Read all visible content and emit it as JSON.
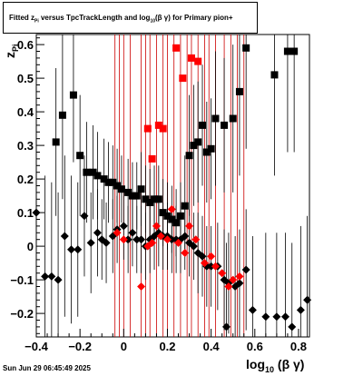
{
  "title": {
    "pre": "Fitted  z",
    "sub1": "Pi",
    "mid": "   versus TpcTrackLength and log",
    "sub2": "10",
    "post": "(β  γ) for Primary pion+"
  },
  "timestamp": "Sun Jun 29 06:45:49 2025",
  "x_axis_label": {
    "main": "log",
    "sub": "10",
    "rest": "(β γ)"
  },
  "y_axis_label": {
    "main": "z",
    "sub": "Pi"
  },
  "chart_data": {
    "type": "scatter",
    "xlim": [
      -0.4,
      0.85
    ],
    "ylim": [
      -0.27,
      0.63
    ],
    "x_ticks": [
      -0.4,
      -0.2,
      0,
      0.2,
      0.4,
      0.6,
      0.8
    ],
    "x_tick_labels": [
      "−0.4",
      "−0.2",
      "0",
      "0.2",
      "0.4",
      "0.6",
      "0.8"
    ],
    "y_ticks": [
      -0.2,
      -0.1,
      0,
      0.1,
      0.2,
      0.3,
      0.4,
      0.5,
      0.6
    ],
    "y_tick_labels": [
      "−0.2",
      "−0.1",
      "0",
      "0.1",
      "0.2",
      "0.3",
      "0.4",
      "0.5",
      "0.6"
    ],
    "grid": false,
    "red_vertical_lines_x": [
      -0.04,
      -0.02,
      0.0,
      0.03,
      0.08,
      0.1,
      0.12,
      0.15,
      0.18,
      0.2,
      0.23,
      0.26,
      0.29,
      0.31,
      0.34,
      0.37,
      0.39,
      0.42,
      0.46,
      0.49,
      0.52,
      0.55
    ],
    "series": [
      {
        "marker": "square",
        "color": "#000000",
        "points": [
          {
            "x": -0.31,
            "y": 0.31,
            "err": 0.22
          },
          {
            "x": -0.28,
            "y": 0.39,
            "err": 0.25
          },
          {
            "x": -0.23,
            "y": 0.45,
            "err": 0.2
          },
          {
            "x": -0.2,
            "y": 0.27,
            "err": 0.18
          },
          {
            "x": -0.17,
            "y": 0.22,
            "err": 0.15
          },
          {
            "x": -0.14,
            "y": 0.22,
            "err": 0.14
          },
          {
            "x": -0.12,
            "y": 0.21,
            "err": 0.13
          },
          {
            "x": -0.09,
            "y": 0.2,
            "err": 0.12
          },
          {
            "x": -0.07,
            "y": 0.19,
            "err": 0.12
          },
          {
            "x": -0.05,
            "y": 0.19,
            "err": 0.11
          },
          {
            "x": -0.03,
            "y": 0.18,
            "err": 0.11
          },
          {
            "x": -0.01,
            "y": 0.17,
            "err": 0.1
          },
          {
            "x": 0.02,
            "y": 0.16,
            "err": 0.1
          },
          {
            "x": 0.04,
            "y": 0.15,
            "err": 0.1
          },
          {
            "x": 0.06,
            "y": 0.15,
            "err": 0.1
          },
          {
            "x": 0.08,
            "y": 0.17,
            "err": 0.11
          },
          {
            "x": 0.1,
            "y": 0.14,
            "err": 0.1
          },
          {
            "x": 0.12,
            "y": 0.13,
            "err": 0.1
          },
          {
            "x": 0.14,
            "y": 0.14,
            "err": 0.1
          },
          {
            "x": 0.16,
            "y": 0.14,
            "err": 0.1
          },
          {
            "x": 0.18,
            "y": 0.1,
            "err": 0.1
          },
          {
            "x": 0.2,
            "y": 0.09,
            "err": 0.1
          },
          {
            "x": 0.22,
            "y": 0.08,
            "err": 0.1
          },
          {
            "x": 0.24,
            "y": 0.07,
            "err": 0.1
          },
          {
            "x": 0.26,
            "y": 0.09,
            "err": 0.1
          },
          {
            "x": 0.28,
            "y": 0.12,
            "err": 0.15
          },
          {
            "x": 0.3,
            "y": 0.27,
            "err": 0.18
          },
          {
            "x": 0.32,
            "y": 0.3,
            "err": 0.18
          },
          {
            "x": 0.34,
            "y": 0.31,
            "err": 0.18
          },
          {
            "x": 0.36,
            "y": 0.36,
            "err": 0.18
          },
          {
            "x": 0.38,
            "y": 0.28,
            "err": 0.15
          },
          {
            "x": 0.4,
            "y": 0.29,
            "err": 0.15
          },
          {
            "x": 0.42,
            "y": 0.38,
            "err": 0.2
          },
          {
            "x": 0.46,
            "y": 0.36,
            "err": 0.2
          },
          {
            "x": 0.5,
            "y": 0.38,
            "err": 0.22
          },
          {
            "x": 0.53,
            "y": 0.46,
            "err": 0.25
          },
          {
            "x": 0.56,
            "y": 0.59,
            "err": 0.3
          },
          {
            "x": 0.69,
            "y": 0.51,
            "err": 0.3
          },
          {
            "x": 0.75,
            "y": 0.58,
            "err": 0.3
          },
          {
            "x": 0.78,
            "y": 0.58,
            "err": 0.3
          }
        ]
      },
      {
        "marker": "square",
        "color": "#ff0000",
        "points": [
          {
            "x": 0.11,
            "y": 0.35
          },
          {
            "x": 0.13,
            "y": 0.26
          },
          {
            "x": 0.16,
            "y": 0.36
          },
          {
            "x": 0.18,
            "y": 0.35
          },
          {
            "x": 0.24,
            "y": 0.59
          },
          {
            "x": 0.27,
            "y": 0.5
          },
          {
            "x": 0.31,
            "y": 0.56
          },
          {
            "x": 0.34,
            "y": 0.55
          }
        ]
      },
      {
        "marker": "diamond",
        "color": "#000000",
        "points": [
          {
            "x": -0.4,
            "y": 0.1,
            "err": 0.3
          },
          {
            "x": -0.36,
            "y": -0.09,
            "err": 0.3
          },
          {
            "x": -0.33,
            "y": -0.09,
            "err": 0.28
          },
          {
            "x": -0.3,
            "y": -0.1,
            "err": 0.26
          },
          {
            "x": -0.27,
            "y": 0.03,
            "err": 0.24
          },
          {
            "x": -0.24,
            "y": -0.01,
            "err": 0.22
          },
          {
            "x": -0.21,
            "y": -0.01,
            "err": 0.2
          },
          {
            "x": -0.18,
            "y": 0.09,
            "err": 0.18
          },
          {
            "x": -0.15,
            "y": 0.01,
            "err": 0.15
          },
          {
            "x": -0.12,
            "y": 0.04,
            "err": 0.13
          },
          {
            "x": -0.1,
            "y": 0.02,
            "err": 0.12
          },
          {
            "x": -0.08,
            "y": 0.01,
            "err": 0.12
          },
          {
            "x": -0.05,
            "y": 0.03,
            "err": 0.11
          },
          {
            "x": -0.03,
            "y": 0.05,
            "err": 0.1
          },
          {
            "x": 0.0,
            "y": 0.06,
            "err": 0.1
          },
          {
            "x": 0.02,
            "y": 0.02,
            "err": 0.1
          },
          {
            "x": 0.04,
            "y": 0.04,
            "err": 0.1
          },
          {
            "x": 0.06,
            "y": 0.02,
            "err": 0.1
          },
          {
            "x": 0.08,
            "y": 0.02,
            "err": 0.1
          },
          {
            "x": 0.1,
            "y": 0.0,
            "err": 0.1
          },
          {
            "x": 0.12,
            "y": 0.02,
            "err": 0.1
          },
          {
            "x": 0.14,
            "y": 0.03,
            "err": 0.1
          },
          {
            "x": 0.16,
            "y": 0.04,
            "err": 0.1
          },
          {
            "x": 0.18,
            "y": 0.03,
            "err": 0.1
          },
          {
            "x": 0.2,
            "y": 0.03,
            "err": 0.1
          },
          {
            "x": 0.22,
            "y": 0.02,
            "err": 0.1
          },
          {
            "x": 0.24,
            "y": 0.02,
            "err": 0.1
          },
          {
            "x": 0.26,
            "y": 0.02,
            "err": 0.1
          },
          {
            "x": 0.28,
            "y": 0.03,
            "err": 0.1
          },
          {
            "x": 0.3,
            "y": 0.01,
            "err": 0.1
          },
          {
            "x": 0.32,
            "y": 0.0,
            "err": 0.1
          },
          {
            "x": 0.34,
            "y": -0.02,
            "err": 0.12
          },
          {
            "x": 0.36,
            "y": -0.03,
            "err": 0.12
          },
          {
            "x": 0.38,
            "y": -0.06,
            "err": 0.12
          },
          {
            "x": 0.4,
            "y": -0.06,
            "err": 0.12
          },
          {
            "x": 0.43,
            "y": -0.06,
            "err": 0.13
          },
          {
            "x": 0.46,
            "y": -0.1,
            "err": 0.15
          },
          {
            "x": 0.48,
            "y": -0.11,
            "err": 0.15
          },
          {
            "x": 0.51,
            "y": -0.12,
            "err": 0.15
          },
          {
            "x": 0.53,
            "y": -0.11,
            "err": 0.16
          },
          {
            "x": 0.56,
            "y": -0.07,
            "err": 0.18
          },
          {
            "x": 0.59,
            "y": -0.19,
            "err": 0.22
          },
          {
            "x": 0.65,
            "y": -0.21,
            "err": 0.25
          },
          {
            "x": 0.7,
            "y": -0.21,
            "err": 0.25
          },
          {
            "x": 0.74,
            "y": -0.21,
            "err": 0.25
          },
          {
            "x": 0.77,
            "y": -0.24,
            "err": 0.25
          },
          {
            "x": 0.81,
            "y": -0.19,
            "err": 0.25
          },
          {
            "x": 0.84,
            "y": -0.16,
            "err": 0.25
          },
          {
            "x": 0.47,
            "y": -0.24,
            "err": 0.25
          }
        ]
      },
      {
        "marker": "diamond",
        "color": "#ff0000",
        "points": [
          {
            "x": -0.03,
            "y": 0.04
          },
          {
            "x": 0.0,
            "y": 0.02
          },
          {
            "x": 0.08,
            "y": -0.12
          },
          {
            "x": 0.11,
            "y": 0.0
          },
          {
            "x": 0.13,
            "y": 0.01
          },
          {
            "x": 0.15,
            "y": 0.06
          },
          {
            "x": 0.17,
            "y": 0.03
          },
          {
            "x": 0.2,
            "y": 0.02
          },
          {
            "x": 0.22,
            "y": 0.11
          },
          {
            "x": 0.25,
            "y": 0.01
          },
          {
            "x": 0.28,
            "y": -0.02
          },
          {
            "x": 0.3,
            "y": 0.06
          },
          {
            "x": 0.33,
            "y": 0.02
          },
          {
            "x": 0.37,
            "y": -0.05
          },
          {
            "x": 0.4,
            "y": -0.03
          },
          {
            "x": 0.42,
            "y": -0.06
          },
          {
            "x": 0.45,
            "y": -0.08
          },
          {
            "x": 0.48,
            "y": -0.12
          },
          {
            "x": 0.5,
            "y": -0.1
          },
          {
            "x": 0.53,
            "y": -0.09
          }
        ]
      }
    ]
  }
}
